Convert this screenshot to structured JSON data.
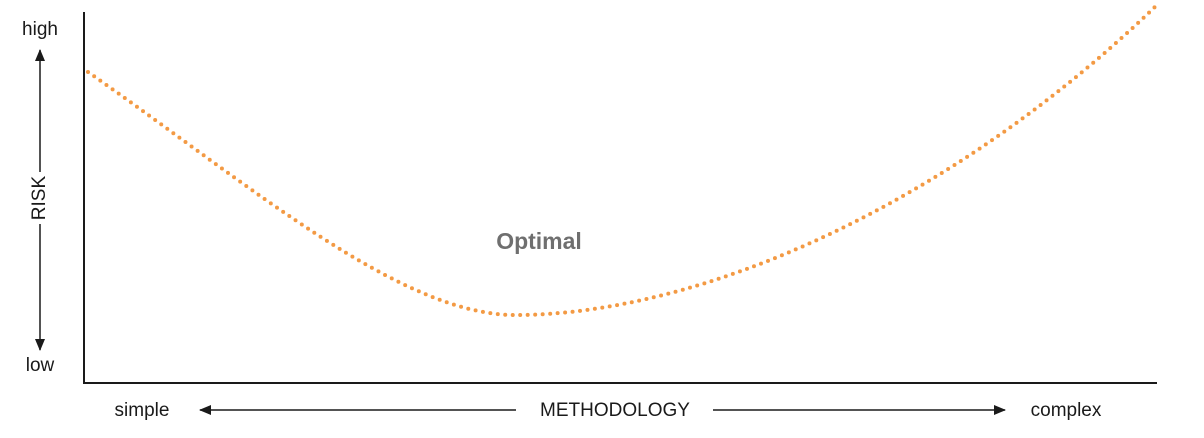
{
  "y_axis": {
    "high": "high",
    "low": "low",
    "label": "RISK"
  },
  "x_axis": {
    "low": "simple",
    "label": "METHODOLOGY",
    "high": "complex"
  },
  "annotation": "Optimal"
}
